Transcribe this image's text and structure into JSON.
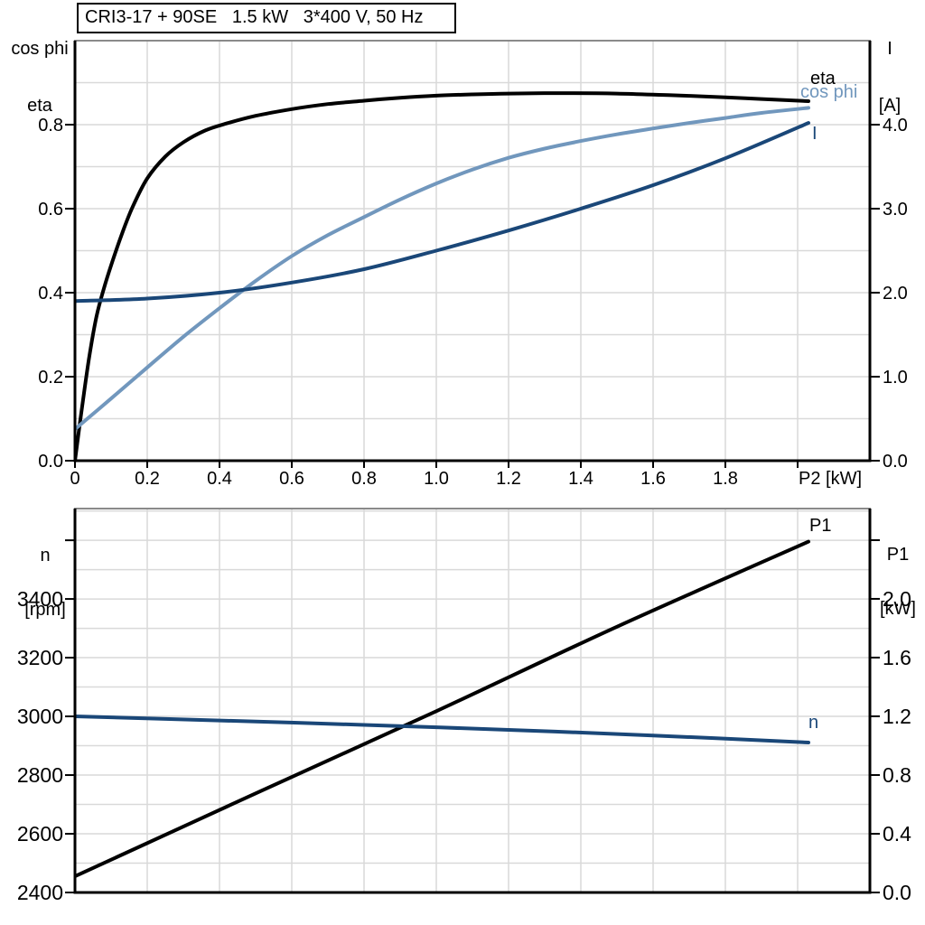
{
  "colors": {
    "black": "#000000",
    "dark_blue": "#1a4778",
    "light_blue": "#7197bd",
    "grid": "#d9d9d9",
    "frame_top": "#8a8a8a"
  },
  "chart_data": [
    {
      "id": "electrical-characteristics",
      "type": "line",
      "title": "CRI3-17 + 90SE   1.5 kW   3*400 V, 50 Hz",
      "x": {
        "label": "P2 [kW]",
        "range": [
          0,
          2.2
        ],
        "unit_label": "P2 [kW]",
        "unit_label_at": 2.0,
        "ticks": [
          {
            "v": 0,
            "label": "0"
          },
          {
            "v": 0.2,
            "label": "0.2"
          },
          {
            "v": 0.4,
            "label": "0.4"
          },
          {
            "v": 0.6,
            "label": "0.6"
          },
          {
            "v": 0.8,
            "label": "0.8"
          },
          {
            "v": 1.0,
            "label": "1.0"
          },
          {
            "v": 1.2,
            "label": "1.2"
          },
          {
            "v": 1.4,
            "label": "1.4"
          },
          {
            "v": 1.6,
            "label": "1.6"
          },
          {
            "v": 1.8,
            "label": "1.8"
          },
          {
            "v": 2.0,
            "label": ""
          }
        ],
        "grid": [
          0.2,
          0.4,
          0.6,
          0.8,
          1.0,
          1.2,
          1.4,
          1.6,
          1.8,
          2.0
        ]
      },
      "y_left": {
        "title_lines": [
          "cos phi",
          "eta"
        ],
        "range": [
          0,
          1.0
        ],
        "ticks": [
          {
            "v": 0.0,
            "label": "0.0"
          },
          {
            "v": 0.2,
            "label": "0.2"
          },
          {
            "v": 0.4,
            "label": "0.4"
          },
          {
            "v": 0.6,
            "label": "0.6"
          },
          {
            "v": 0.8,
            "label": "0.8"
          }
        ],
        "grid": [
          0.1,
          0.2,
          0.3,
          0.4,
          0.5,
          0.6,
          0.7,
          0.8,
          0.9
        ]
      },
      "y_right": {
        "title_lines": [
          "I",
          "[A]"
        ],
        "range": [
          0,
          5
        ],
        "ticks": [
          {
            "v": 0,
            "label": "0.0"
          },
          {
            "v": 1,
            "label": "1.0"
          },
          {
            "v": 2,
            "label": "2.0"
          },
          {
            "v": 3,
            "label": "3.0"
          },
          {
            "v": 4,
            "label": "4.0"
          }
        ]
      },
      "series": [
        {
          "name": "eta",
          "label": "eta",
          "axis": "left",
          "color": "black",
          "points": [
            [
              0,
              0
            ],
            [
              0.02,
              0.13
            ],
            [
              0.04,
              0.25
            ],
            [
              0.06,
              0.345
            ],
            [
              0.08,
              0.41
            ],
            [
              0.1,
              0.465
            ],
            [
              0.13,
              0.54
            ],
            [
              0.16,
              0.605
            ],
            [
              0.2,
              0.672
            ],
            [
              0.25,
              0.724
            ],
            [
              0.3,
              0.758
            ],
            [
              0.36,
              0.786
            ],
            [
              0.42,
              0.803
            ],
            [
              0.5,
              0.821
            ],
            [
              0.6,
              0.837
            ],
            [
              0.7,
              0.849
            ],
            [
              0.8,
              0.857
            ],
            [
              0.9,
              0.864
            ],
            [
              1.0,
              0.869
            ],
            [
              1.1,
              0.872
            ],
            [
              1.2,
              0.874
            ],
            [
              1.35,
              0.875
            ],
            [
              1.5,
              0.874
            ],
            [
              1.65,
              0.87
            ],
            [
              1.8,
              0.865
            ],
            [
              1.9,
              0.861
            ],
            [
              2.03,
              0.856
            ]
          ]
        },
        {
          "name": "cos phi",
          "label": "cos phi",
          "axis": "left",
          "color": "light_blue",
          "points": [
            [
              0,
              0.075
            ],
            [
              0.1,
              0.148
            ],
            [
              0.2,
              0.222
            ],
            [
              0.3,
              0.295
            ],
            [
              0.4,
              0.363
            ],
            [
              0.5,
              0.428
            ],
            [
              0.6,
              0.487
            ],
            [
              0.7,
              0.537
            ],
            [
              0.8,
              0.58
            ],
            [
              0.9,
              0.622
            ],
            [
              1.0,
              0.66
            ],
            [
              1.1,
              0.693
            ],
            [
              1.2,
              0.721
            ],
            [
              1.3,
              0.743
            ],
            [
              1.4,
              0.761
            ],
            [
              1.5,
              0.777
            ],
            [
              1.6,
              0.791
            ],
            [
              1.7,
              0.804
            ],
            [
              1.8,
              0.816
            ],
            [
              1.9,
              0.828
            ],
            [
              2.03,
              0.84
            ]
          ]
        },
        {
          "name": "I",
          "label": "I",
          "axis": "right",
          "color": "dark_blue",
          "points": [
            [
              0,
              1.9
            ],
            [
              0.2,
              1.93
            ],
            [
              0.4,
              2.0
            ],
            [
              0.6,
              2.12
            ],
            [
              0.8,
              2.28
            ],
            [
              1.0,
              2.5
            ],
            [
              1.2,
              2.74
            ],
            [
              1.4,
              3.0
            ],
            [
              1.6,
              3.28
            ],
            [
              1.8,
              3.6
            ],
            [
              2.03,
              4.02
            ]
          ]
        }
      ]
    },
    {
      "id": "speed-and-input-power",
      "type": "line",
      "title": "",
      "x": {
        "label": "P2 [kW]",
        "range": [
          0,
          2.2
        ],
        "ticks": [],
        "grid": [
          0.2,
          0.4,
          0.6,
          0.8,
          1.0,
          1.2,
          1.4,
          1.6,
          1.8,
          2.0
        ]
      },
      "y_left": {
        "title_lines": [
          "n",
          "[rpm]"
        ],
        "range": [
          2400,
          3708
        ],
        "ticks": [
          {
            "v": 2400,
            "label": "2400"
          },
          {
            "v": 2600,
            "label": "2600"
          },
          {
            "v": 2800,
            "label": "2800"
          },
          {
            "v": 3000,
            "label": "3000"
          },
          {
            "v": 3200,
            "label": "3200"
          },
          {
            "v": 3400,
            "label": "3400"
          },
          {
            "v": 3600,
            "label": ""
          }
        ],
        "grid": [
          2500,
          2600,
          2700,
          2800,
          2900,
          3000,
          3100,
          3200,
          3300,
          3400,
          3500,
          3600,
          3700
        ]
      },
      "y_right": {
        "title_lines": [
          "P1",
          "[kW]"
        ],
        "range": [
          0,
          2.615
        ],
        "ticks": [
          {
            "v": 0.0,
            "label": "0.0"
          },
          {
            "v": 0.4,
            "label": "0.4"
          },
          {
            "v": 0.8,
            "label": "0.8"
          },
          {
            "v": 1.2,
            "label": "1.2"
          },
          {
            "v": 1.6,
            "label": "1.6"
          },
          {
            "v": 2.0,
            "label": "2.0"
          },
          {
            "v": 2.4,
            "label": ""
          }
        ]
      },
      "series": [
        {
          "name": "P1",
          "label": "P1",
          "axis": "right",
          "color": "black",
          "points": [
            [
              0,
              0.11
            ],
            [
              0.5,
              0.675
            ],
            [
              1.0,
              1.235
            ],
            [
              1.5,
              1.81
            ],
            [
              2.03,
              2.39
            ]
          ]
        },
        {
          "name": "n",
          "label": "n",
          "axis": "left",
          "color": "dark_blue",
          "points": [
            [
              0,
              3000
            ],
            [
              0.4,
              2986
            ],
            [
              0.8,
              2971
            ],
            [
              1.2,
              2954
            ],
            [
              1.6,
              2935
            ],
            [
              2.03,
              2911
            ]
          ]
        }
      ]
    }
  ]
}
